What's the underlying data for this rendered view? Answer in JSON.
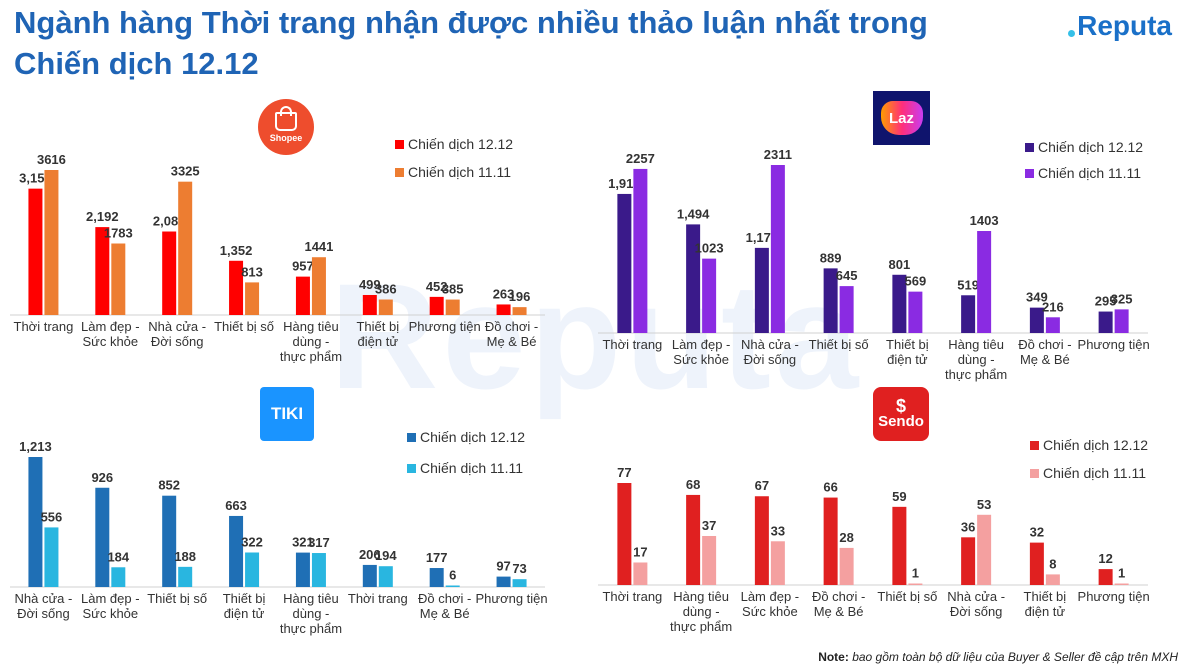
{
  "header": {
    "title_line1": "Ngành hàng Thời trang nhận được nhiều thảo luận nhất trong",
    "title_line2": "Chiến dịch 12.12",
    "brand": "Reputa"
  },
  "watermark": "Reputa",
  "logos": {
    "shopee": "Shopee",
    "lazada": "Laz",
    "tiki": "TIKI",
    "sendo": "Sendo"
  },
  "note": {
    "label": "Note:",
    "text": "bao gồm toàn bộ dữ liệu của Buyer & Seller đề cập trên MXH"
  },
  "colors": {
    "title": "#1f64b5",
    "shopee_1212": "#ff0000",
    "shopee_1111": "#ed7d31",
    "lazada_1212": "#3a1a8a",
    "lazada_1111": "#8a2be2",
    "tiki_1212": "#1f6fb5",
    "tiki_1111": "#29b6e0",
    "sendo_1212": "#e02020",
    "sendo_1111": "#f4a0a0"
  },
  "chart_data": [
    {
      "type": "bar",
      "platform": "Shopee",
      "categories": [
        "Thời trang",
        "Làm đẹp - Sức khỏe",
        "Nhà cửa - Đời sống",
        "Thiết bị số",
        "Hàng tiêu dùng - thực phẩm",
        "Thiết bị điện tử",
        "Phương tiện",
        "Đồ chơi - Mẹ & Bé"
      ],
      "series": [
        {
          "name": "Chiến dịch 12.12",
          "values": [
            3151,
            2192,
            2082,
            1352,
            957,
            499,
            452,
            263
          ],
          "labels": [
            "3,151",
            "2,192",
            "2,082",
            "1,352",
            "957",
            "499",
            "452",
            "263"
          ]
        },
        {
          "name": "Chiến dịch 11.11",
          "values": [
            3616,
            1783,
            3325,
            813,
            1441,
            386,
            385,
            196
          ],
          "labels": [
            "3616",
            "1783",
            "3325",
            "813",
            "1441",
            "386",
            "385",
            "196"
          ]
        }
      ],
      "legend": "top-right"
    },
    {
      "type": "bar",
      "platform": "Lazada",
      "categories": [
        "Thời trang",
        "Làm đẹp - Sức khỏe",
        "Nhà cửa - Đời sống",
        "Thiết bị số",
        "Thiết bị điện tử",
        "Hàng tiêu dùng - thực phẩm",
        "Đồ chơi - Mẹ & Bé",
        "Phương tiện"
      ],
      "series": [
        {
          "name": "Chiến dịch 12.12",
          "values": [
            1913,
            1494,
            1171,
            889,
            801,
            519,
            349,
            295
          ],
          "labels": [
            "1,913",
            "1,494",
            "1,171",
            "889",
            "801",
            "519",
            "349",
            "295"
          ]
        },
        {
          "name": "Chiến dịch 11.11",
          "values": [
            2257,
            1023,
            2311,
            645,
            569,
            1403,
            216,
            325
          ],
          "labels": [
            "2257",
            "1023",
            "2311",
            "645",
            "569",
            "1403",
            "216",
            "325"
          ]
        }
      ],
      "legend": "top-right"
    },
    {
      "type": "bar",
      "platform": "Tiki",
      "categories": [
        "Nhà cửa - Đời sống",
        "Làm đẹp - Sức khỏe",
        "Thiết bị số",
        "Thiết bị điện tử",
        "Hàng tiêu dùng - thực phẩm",
        "Thời trang",
        "Đồ chơi - Mẹ & Bé",
        "Phương tiện"
      ],
      "series": [
        {
          "name": "Chiến dịch 12.12",
          "values": [
            1213,
            926,
            852,
            663,
            321,
            206,
            177,
            97
          ],
          "labels": [
            "1,213",
            "926",
            "852",
            "663",
            "321",
            "206",
            "177",
            "97"
          ]
        },
        {
          "name": "Chiến dịch 11.11",
          "values": [
            556,
            184,
            188,
            322,
            317,
            194,
            6,
            73
          ],
          "labels": [
            "556",
            "184",
            "188",
            "322",
            "317",
            "194",
            "6",
            "73"
          ]
        }
      ],
      "legend": "top-right"
    },
    {
      "type": "bar",
      "platform": "Sendo",
      "categories": [
        "Thời trang",
        "Hàng tiêu dùng - thực phẩm",
        "Làm đẹp - Sức khỏe",
        "Đồ chơi - Mẹ & Bé",
        "Thiết bị số",
        "Nhà cửa - Đời sống",
        "Thiết bị điện tử",
        "Phương tiện"
      ],
      "series": [
        {
          "name": "Chiến dịch 12.12",
          "values": [
            77,
            68,
            67,
            66,
            59,
            36,
            32,
            12
          ],
          "labels": [
            "77",
            "68",
            "67",
            "66",
            "59",
            "36",
            "32",
            "12"
          ]
        },
        {
          "name": "Chiến dịch 11.11",
          "values": [
            17,
            37,
            33,
            28,
            1,
            53,
            8,
            1
          ],
          "labels": [
            "17",
            "37",
            "33",
            "28",
            "1",
            "53",
            "8",
            "1"
          ]
        }
      ],
      "legend": "top-right"
    }
  ]
}
